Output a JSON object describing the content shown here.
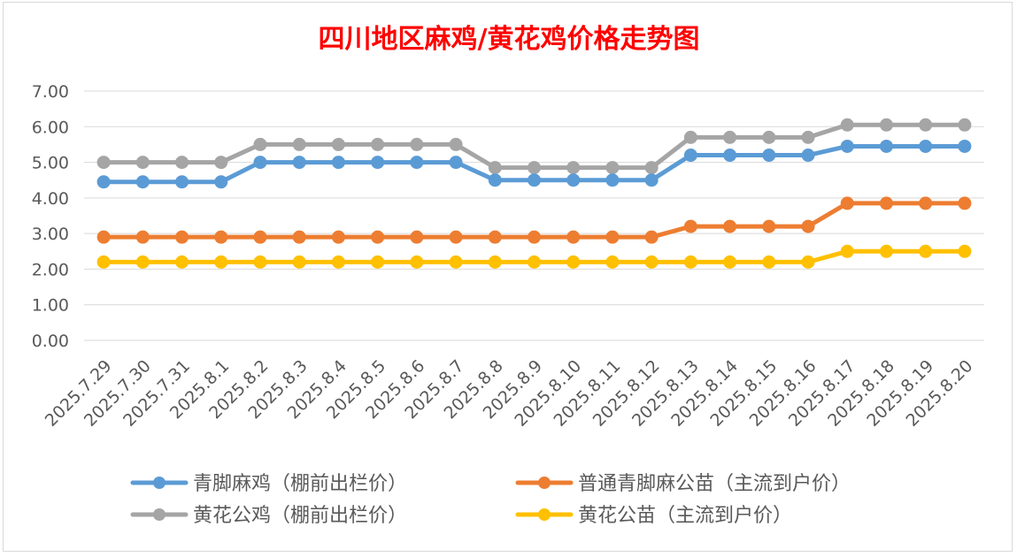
{
  "colors": {
    "title": "#ff0000",
    "axis_text": "#595959",
    "grid": "#d9d9d9",
    "series": [
      "#5b9bd5",
      "#ed7d31",
      "#a5a5a5",
      "#ffc000"
    ]
  },
  "chart_data": {
    "type": "line",
    "title": "四川地区麻鸡/黄花鸡价格走势图",
    "xlabel": "",
    "ylabel": "",
    "ylim": [
      0,
      7
    ],
    "yticks": [
      "0.00",
      "1.00",
      "2.00",
      "3.00",
      "4.00",
      "5.00",
      "6.00",
      "7.00"
    ],
    "grid": true,
    "legend_position": "bottom",
    "categories": [
      "2025.7.29",
      "2025.7.30",
      "2025.7.31",
      "2025.8.1",
      "2025.8.2",
      "2025.8.3",
      "2025.8.4",
      "2025.8.5",
      "2025.8.6",
      "2025.8.7",
      "2025.8.8",
      "2025.8.9",
      "2025.8.10",
      "2025.8.11",
      "2025.8.12",
      "2025.8.13",
      "2025.8.14",
      "2025.8.15",
      "2025.8.16",
      "2025.8.17",
      "2025.8.18",
      "2025.8.19",
      "2025.8.20"
    ],
    "series": [
      {
        "name": "青脚麻鸡（棚前出栏价）",
        "values": [
          4.45,
          4.45,
          4.45,
          4.45,
          5.0,
          5.0,
          5.0,
          5.0,
          5.0,
          5.0,
          4.5,
          4.5,
          4.5,
          4.5,
          4.5,
          5.2,
          5.2,
          5.2,
          5.2,
          5.45,
          5.45,
          5.45,
          5.45
        ]
      },
      {
        "name": "普通青脚麻公苗（主流到户价）",
        "values": [
          2.9,
          2.9,
          2.9,
          2.9,
          2.9,
          2.9,
          2.9,
          2.9,
          2.9,
          2.9,
          2.9,
          2.9,
          2.9,
          2.9,
          2.9,
          3.2,
          3.2,
          3.2,
          3.2,
          3.85,
          3.85,
          3.85,
          3.85
        ]
      },
      {
        "name": "黄花公鸡（棚前出栏价）",
        "values": [
          5.0,
          5.0,
          5.0,
          5.0,
          5.5,
          5.5,
          5.5,
          5.5,
          5.5,
          5.5,
          4.85,
          4.85,
          4.85,
          4.85,
          4.85,
          5.7,
          5.7,
          5.7,
          5.7,
          6.05,
          6.05,
          6.05,
          6.05
        ]
      },
      {
        "name": "黄花公苗（主流到户价）",
        "values": [
          2.2,
          2.2,
          2.2,
          2.2,
          2.2,
          2.2,
          2.2,
          2.2,
          2.2,
          2.2,
          2.2,
          2.2,
          2.2,
          2.2,
          2.2,
          2.2,
          2.2,
          2.2,
          2.2,
          2.5,
          2.5,
          2.5,
          2.5
        ]
      }
    ]
  }
}
